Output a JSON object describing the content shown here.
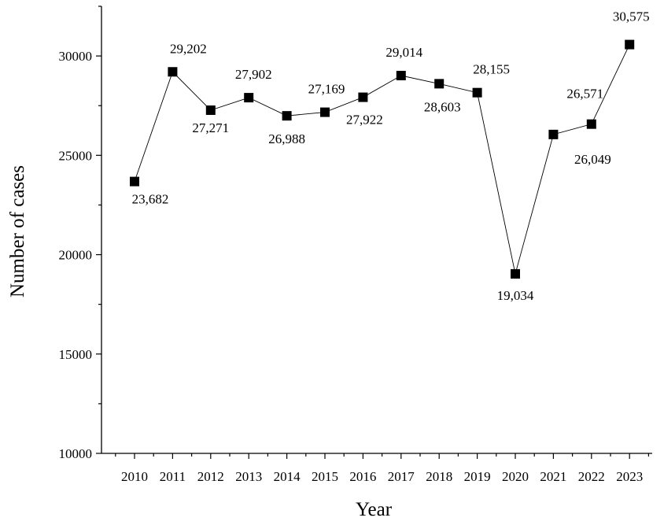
{
  "chart_data": {
    "type": "line",
    "xlabel": "Year",
    "ylabel": "Number of cases",
    "x": [
      "2010",
      "2011",
      "2012",
      "2013",
      "2014",
      "2015",
      "2016",
      "2017",
      "2018",
      "2019",
      "2020",
      "2021",
      "2022",
      "2023"
    ],
    "values": [
      23682,
      29202,
      27271,
      27902,
      26988,
      27169,
      27922,
      29014,
      28603,
      28155,
      19034,
      26049,
      26571,
      30575
    ],
    "data_labels": [
      "23,682",
      "29,202",
      "27,271",
      "27,902",
      "26,988",
      "27,169",
      "27,922",
      "29,014",
      "28,603",
      "28,155",
      "19,034",
      "26,049",
      "26,571",
      "30,575"
    ],
    "ylim": [
      10000,
      32500
    ],
    "yticks": [
      10000,
      15000,
      20000,
      25000,
      30000
    ],
    "ytick_labels": [
      "10000",
      "15000",
      "20000",
      "25000",
      "30000"
    ],
    "grid": false,
    "marker": "square",
    "color": "#000000"
  }
}
